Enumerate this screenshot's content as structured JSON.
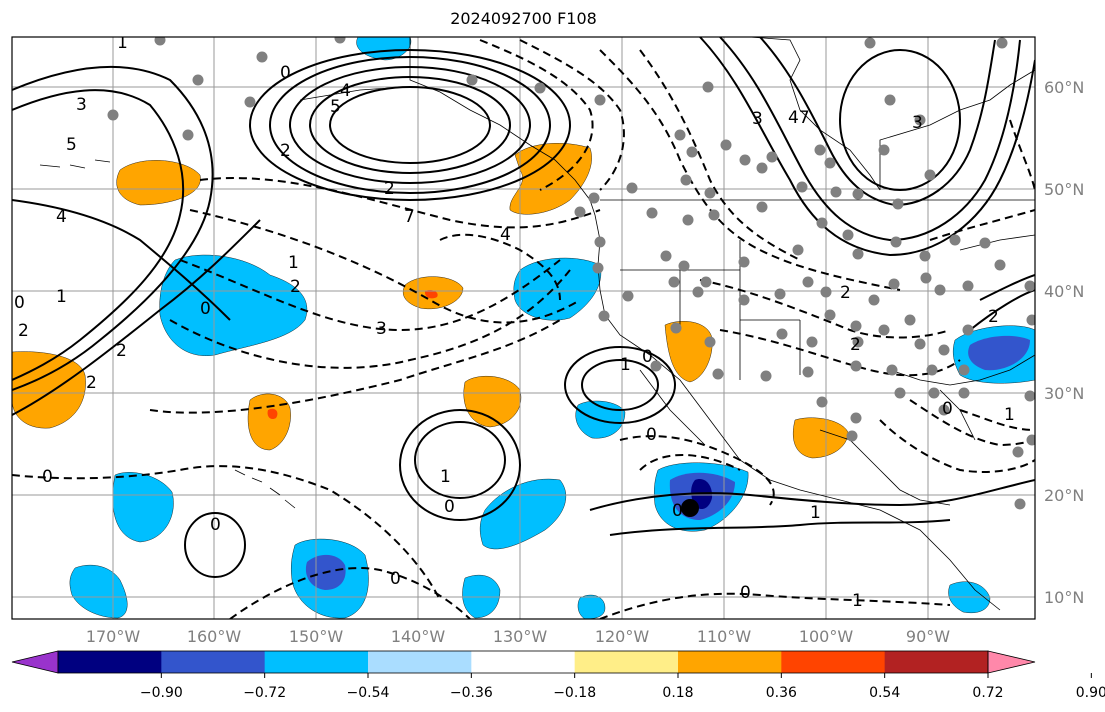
{
  "title": "2024092700 F108",
  "lon_labels": [
    "170°W",
    "160°W",
    "150°W",
    "140°W",
    "130°W",
    "120°W",
    "110°W",
    "100°W",
    "90°W"
  ],
  "lat_labels": [
    "60°N",
    "50°N",
    "40°N",
    "30°N",
    "20°N",
    "10°N"
  ],
  "contour_labels": {
    "c1": "1",
    "c3": "3",
    "c5": "5",
    "c4": "4",
    "c0": "0",
    "c2": "2",
    "c3b": "3",
    "c4b": "4",
    "c1b": "1",
    "c0b": "0",
    "c2b": "2",
    "c5b": "5",
    "c0c": "0",
    "c2c": "2",
    "c7": "7",
    "c4c": "4",
    "c3c": "3",
    "c2d": "2",
    "c1c": "1",
    "c0d": "0",
    "c1d": "1",
    "c0e": "0",
    "c0f": "0",
    "c0g": "0",
    "c0h": "0",
    "c1e": "1",
    "c0i": "0",
    "c1f": "1",
    "c2e": "2",
    "c2f": "2",
    "c47": "47",
    "c3d": "3",
    "c0j": "0",
    "c2g": "2",
    "c0k": "0",
    "c2h": "2",
    "c1g": "1",
    "c2i": "2",
    "c0l": "0",
    "c1h": "1"
  },
  "colorbar": {
    "colors": [
      "#9933cc",
      "#000080",
      "#3355cc",
      "#00bfff",
      "#aaddff",
      "#ffffff",
      "#ffee88",
      "#ffa500",
      "#ff4400",
      "#b22222",
      "#ff88aa"
    ],
    "ticks": [
      "−0.90",
      "−0.72",
      "−0.54",
      "−0.36",
      "−0.18",
      "0.18",
      "0.36",
      "0.54",
      "0.72",
      "0.90"
    ]
  },
  "colors": {
    "orange": "#ffa500",
    "cyan": "#00bfff",
    "blue": "#3355cc",
    "navy": "#000080",
    "red": "#ff4400",
    "grid": "#999999",
    "dot": "#808080",
    "axis_text": "#808080"
  }
}
